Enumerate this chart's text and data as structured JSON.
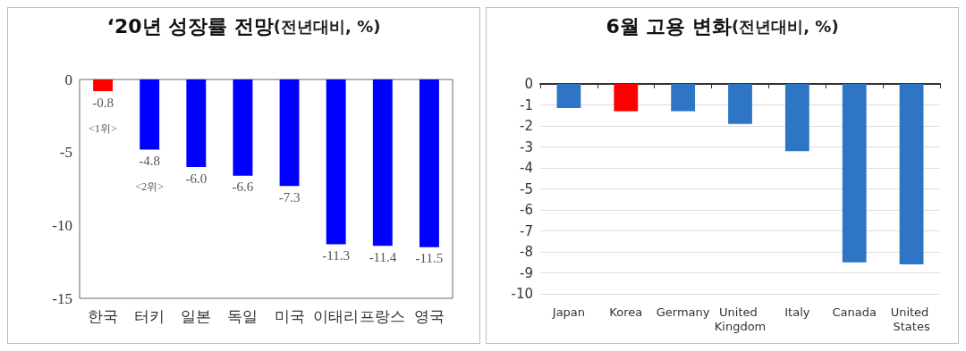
{
  "chart_data": [
    {
      "type": "bar",
      "title": "‘20년 성장률 전망",
      "subtitle": "(전년대비, %)",
      "categories": [
        "한국",
        "터키",
        "일본",
        "독일",
        "미국",
        "이태리",
        "프랑스",
        "영국"
      ],
      "values": [
        -0.8,
        -4.8,
        -6.0,
        -6.6,
        -7.3,
        -11.3,
        -11.4,
        -11.5
      ],
      "colors": [
        "#ff0000",
        "#0000ff",
        "#0000ff",
        "#0000ff",
        "#0000ff",
        "#0000ff",
        "#0000ff",
        "#0000ff"
      ],
      "value_labels": [
        "-0.8",
        "-4.8",
        "-6.0",
        "-6.6",
        "-7.3",
        "-11.3",
        "-11.4",
        "-11.5"
      ],
      "annotations": [
        {
          "text": "<1위>",
          "x": "한국",
          "y": -0.8
        },
        {
          "text": "<2위>",
          "x": "터키",
          "y": -4.8
        }
      ],
      "ylim": [
        -15,
        0
      ],
      "yticks": [
        -15,
        -10,
        -5,
        0
      ],
      "grid": false
    },
    {
      "type": "bar",
      "title": "6월 고용 변화",
      "subtitle": "(전년대비, %)",
      "categories": [
        "Japan",
        "Korea",
        "Germany",
        "United Kingdom",
        "Italy",
        "Canada",
        "United States"
      ],
      "values": [
        -1.15,
        -1.3,
        -1.3,
        -1.9,
        -3.2,
        -8.5,
        -8.6
      ],
      "colors": [
        "#2e75c6",
        "#ff0000",
        "#2e75c6",
        "#2e75c6",
        "#2e75c6",
        "#2e75c6",
        "#2e75c6"
      ],
      "ylim": [
        -10,
        0
      ],
      "yticks": [
        -10,
        -9,
        -8,
        -7,
        -6,
        -5,
        -4,
        -3,
        -2,
        -1,
        0
      ],
      "grid": "y"
    }
  ]
}
